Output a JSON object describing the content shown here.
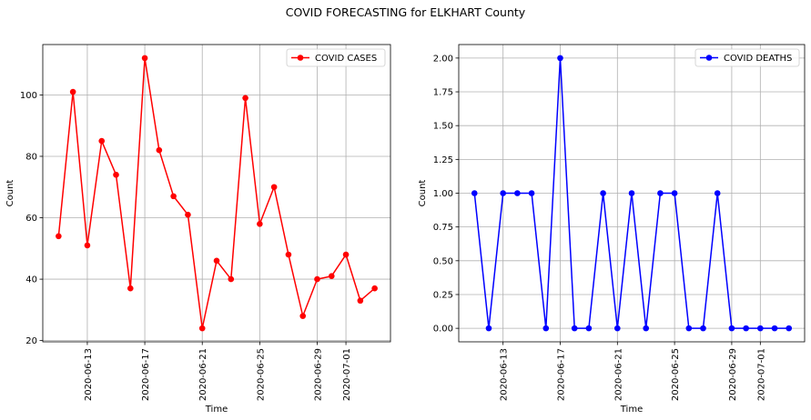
{
  "suptitle": "COVID FORECASTING for ELKHART County",
  "chart_data": [
    {
      "type": "line",
      "x": [
        "2020-06-11",
        "2020-06-12",
        "2020-06-13",
        "2020-06-14",
        "2020-06-15",
        "2020-06-16",
        "2020-06-17",
        "2020-06-18",
        "2020-06-19",
        "2020-06-20",
        "2020-06-21",
        "2020-06-22",
        "2020-06-23",
        "2020-06-24",
        "2020-06-25",
        "2020-06-26",
        "2020-06-27",
        "2020-06-28",
        "2020-06-29",
        "2020-06-30",
        "2020-07-01",
        "2020-07-02",
        "2020-07-03"
      ],
      "series": [
        {
          "name": "COVID CASES",
          "values": [
            54,
            101,
            51,
            85,
            74,
            37,
            112,
            82,
            67,
            61,
            24,
            46,
            40,
            99,
            58,
            70,
            48,
            28,
            40,
            41,
            48,
            33,
            37
          ],
          "color": "#ff0000"
        }
      ],
      "xticks": [
        "2020-06-13",
        "2020-06-17",
        "2020-06-21",
        "2020-06-25",
        "2020-06-29",
        "2020-07-01"
      ],
      "yticks": [
        "20",
        "40",
        "60",
        "80",
        "100"
      ],
      "xlabel": "Time",
      "ylabel": "Count",
      "ylim": [
        19.6,
        116.4
      ],
      "grid": true,
      "legend": "top-right"
    },
    {
      "type": "line",
      "x": [
        "2020-06-11",
        "2020-06-12",
        "2020-06-13",
        "2020-06-14",
        "2020-06-15",
        "2020-06-16",
        "2020-06-17",
        "2020-06-18",
        "2020-06-19",
        "2020-06-20",
        "2020-06-21",
        "2020-06-22",
        "2020-06-23",
        "2020-06-24",
        "2020-06-25",
        "2020-06-26",
        "2020-06-27",
        "2020-06-28",
        "2020-06-29",
        "2020-06-30",
        "2020-07-01",
        "2020-07-02",
        "2020-07-03"
      ],
      "series": [
        {
          "name": "COVID DEATHS",
          "values": [
            1,
            0,
            1,
            1,
            1,
            0,
            2,
            0,
            0,
            1,
            0,
            1,
            0,
            1,
            1,
            0,
            0,
            1,
            0,
            0,
            0,
            0,
            0
          ],
          "color": "#0000ff"
        }
      ],
      "xticks": [
        "2020-06-13",
        "2020-06-17",
        "2020-06-21",
        "2020-06-25",
        "2020-06-29",
        "2020-07-01"
      ],
      "yticks": [
        "0.00",
        "0.25",
        "0.50",
        "0.75",
        "1.00",
        "1.25",
        "1.50",
        "1.75",
        "2.00"
      ],
      "xlabel": "Time",
      "ylabel": "Count",
      "ylim": [
        -0.1,
        2.1
      ],
      "grid": true,
      "legend": "top-right"
    }
  ]
}
